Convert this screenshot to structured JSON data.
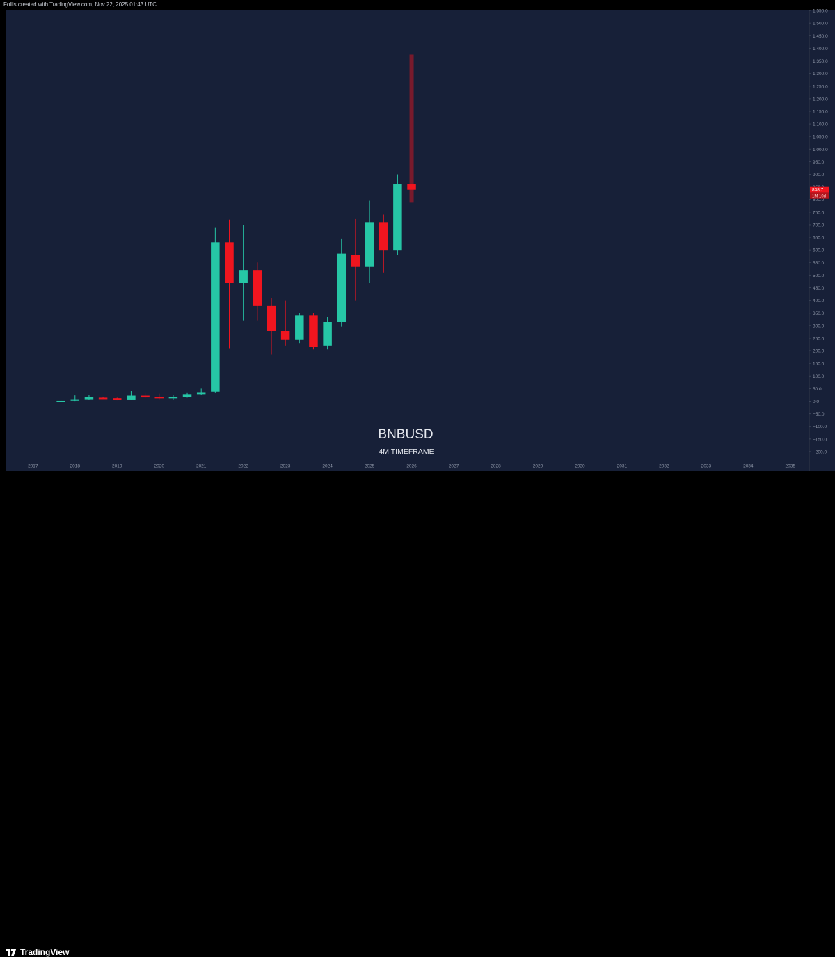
{
  "header": {
    "text": "Follis created with TradingView.com, Nov 22, 2025 01:43 UTC"
  },
  "footer": {
    "logo_text": "TradingView"
  },
  "colors": {
    "up": "#26c6a6",
    "down": "#f0151f",
    "background": "#172038",
    "frame": "#000000",
    "axis_text": "#8f97a8"
  },
  "chart_data": {
    "type": "candlestick",
    "symbol": "BNBUSD",
    "timeframe_label": "4M TIMEFRAME",
    "ylim": [
      -225,
      1575
    ],
    "y_ticks": [
      "1,550.0",
      "1,500.0",
      "1,450.0",
      "1,400.0",
      "1,350.0",
      "1,300.0",
      "1,250.0",
      "1,200.0",
      "1,150.0",
      "1,100.0",
      "1,050.0",
      "1,000.0",
      "950.0",
      "900.0",
      "850.0",
      "800.0",
      "750.0",
      "700.0",
      "650.0",
      "600.0",
      "550.0",
      "500.0",
      "450.0",
      "400.0",
      "350.0",
      "300.0",
      "250.0",
      "200.0",
      "150.0",
      "100.0",
      "50.0",
      "0.0",
      "−50.0",
      "−100.0",
      "−150.0",
      "−200.0"
    ],
    "x_ticks": [
      "2017",
      "2018",
      "2019",
      "2020",
      "2021",
      "2022",
      "2023",
      "2024",
      "2025",
      "2026",
      "2027",
      "2028",
      "2029",
      "2030",
      "2031",
      "2032",
      "2033",
      "2034",
      "2035"
    ],
    "x_tick_dates": [
      2017.0,
      2018.0,
      2019.0,
      2020.0,
      2021.0,
      2022.0,
      2023.0,
      2024.0,
      2025.0,
      2026.0,
      2027.0,
      2028.0,
      2029.0,
      2030.0,
      2031.0,
      2032.0,
      2033.0,
      2034.0,
      2035.0
    ],
    "xlim": [
      2016.35,
      2035.45
    ],
    "candles": [
      {
        "date": "2017-07",
        "open": 0.1,
        "high": 2,
        "low": 0,
        "close": 1.5
      },
      {
        "date": "2017-11",
        "open": 2,
        "high": 23,
        "low": 1,
        "close": 8
      },
      {
        "date": "2018-03",
        "open": 8,
        "high": 25,
        "low": 6,
        "close": 16
      },
      {
        "date": "2018-07",
        "open": 14,
        "high": 18,
        "low": 9,
        "close": 12
      },
      {
        "date": "2018-11",
        "open": 12,
        "high": 14,
        "low": 4,
        "close": 6
      },
      {
        "date": "2019-03",
        "open": 7,
        "high": 40,
        "low": 5,
        "close": 22
      },
      {
        "date": "2019-07",
        "open": 22,
        "high": 35,
        "low": 13,
        "close": 15
      },
      {
        "date": "2019-11",
        "open": 17,
        "high": 30,
        "low": 8,
        "close": 12
      },
      {
        "date": "2020-03",
        "open": 12,
        "high": 25,
        "low": 6,
        "close": 17
      },
      {
        "date": "2020-07",
        "open": 17,
        "high": 35,
        "low": 14,
        "close": 28
      },
      {
        "date": "2020-11",
        "open": 28,
        "high": 50,
        "low": 25,
        "close": 36
      },
      {
        "date": "2021-03",
        "open": 38,
        "high": 690,
        "low": 35,
        "close": 630
      },
      {
        "date": "2021-07",
        "open": 630,
        "high": 720,
        "low": 210,
        "close": 470
      },
      {
        "date": "2021-11",
        "open": 470,
        "high": 700,
        "low": 320,
        "close": 520
      },
      {
        "date": "2022-03",
        "open": 520,
        "high": 550,
        "low": 320,
        "close": 380
      },
      {
        "date": "2022-07",
        "open": 380,
        "high": 410,
        "low": 185,
        "close": 280
      },
      {
        "date": "2022-11",
        "open": 280,
        "high": 400,
        "low": 220,
        "close": 245
      },
      {
        "date": "2023-03",
        "open": 245,
        "high": 350,
        "low": 230,
        "close": 340
      },
      {
        "date": "2023-07",
        "open": 340,
        "high": 350,
        "low": 205,
        "close": 215
      },
      {
        "date": "2023-11",
        "open": 220,
        "high": 335,
        "low": 205,
        "close": 315
      },
      {
        "date": "2024-03",
        "open": 315,
        "high": 645,
        "low": 295,
        "close": 585
      },
      {
        "date": "2024-07",
        "open": 580,
        "high": 725,
        "low": 400,
        "close": 535
      },
      {
        "date": "2024-11",
        "open": 535,
        "high": 795,
        "low": 470,
        "close": 710
      },
      {
        "date": "2025-03",
        "open": 710,
        "high": 740,
        "low": 510,
        "close": 600
      },
      {
        "date": "2025-07",
        "open": 600,
        "high": 900,
        "low": 580,
        "close": 860
      },
      {
        "date": "2025-11",
        "open": 860,
        "high": 1375,
        "low": 790,
        "close": 838.7
      }
    ],
    "last_price_label": "838.7",
    "last_bar_countdown": "1M 10d"
  }
}
